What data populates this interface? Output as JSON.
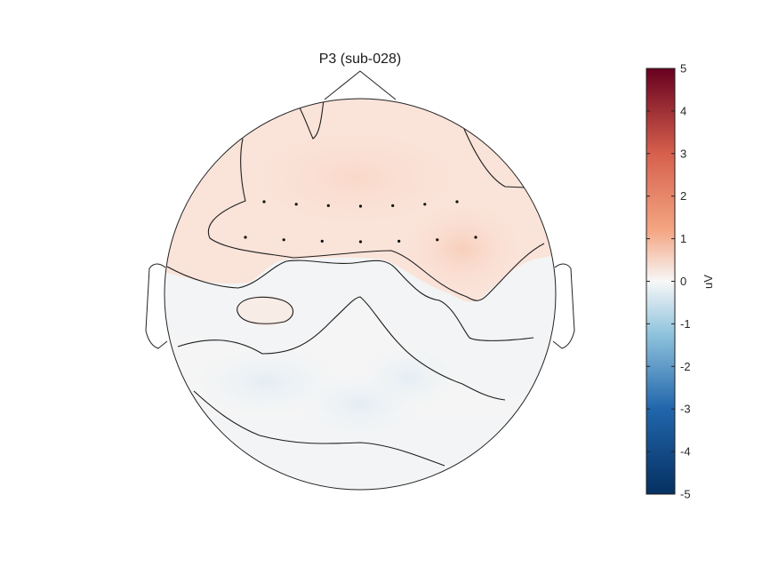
{
  "chart_data": {
    "type": "heatmap",
    "subtype": "topographic-scalp-map",
    "title": "P3 (sub-028)",
    "colorbar": {
      "label": "uV",
      "range": [
        -5,
        5
      ],
      "ticks": [
        "5",
        "4",
        "3",
        "2",
        "1",
        "0",
        "-1",
        "-2",
        "-3",
        "-4",
        "-5"
      ],
      "colormap": "diverging-red-blue",
      "colors": {
        "max": "#67001f",
        "high": "#d6604d",
        "mid_high": "#f4a582",
        "zero": "#f7f7f7",
        "mid_low": "#92c5de",
        "low": "#2166ac",
        "min": "#053061"
      }
    },
    "field_values": {
      "frontal": 0.8,
      "central": 0.7,
      "right_central": 1.0,
      "left_temporal_island": 0.3,
      "parietal": -0.3,
      "occipital": -0.1
    },
    "contours": {
      "line_color": "#1e1e1e",
      "count": 5
    },
    "electrodes": {
      "row_1_count": 7,
      "row_2_count": 7
    }
  }
}
